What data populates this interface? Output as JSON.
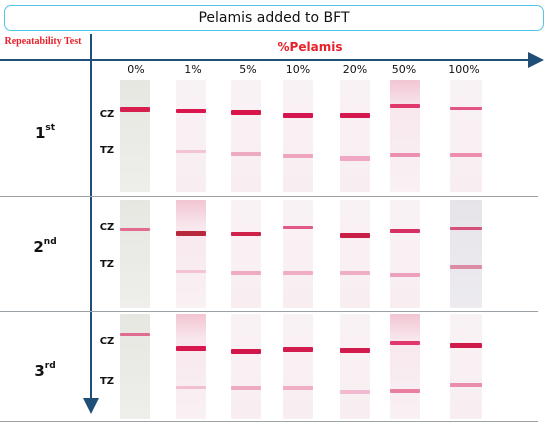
{
  "title": "Pelamis added to BFT",
  "corner_label": "Repeatability Test",
  "axis_title": "%Pelamis",
  "columns": [
    "0%",
    "1%",
    "5%",
    "10%",
    "20%",
    "50%",
    "100%"
  ],
  "rows": [
    {
      "main": "1",
      "sup": "st"
    },
    {
      "main": "2",
      "sup": "nd"
    },
    {
      "main": "3",
      "sup": "rd"
    }
  ],
  "zone_labels": {
    "control": "CZ",
    "test": "TZ"
  },
  "colors": {
    "title_border": "#54c6e8",
    "accent_text": "#e8202a",
    "axis": "#1f4e79",
    "band": "#d81e5b"
  }
}
